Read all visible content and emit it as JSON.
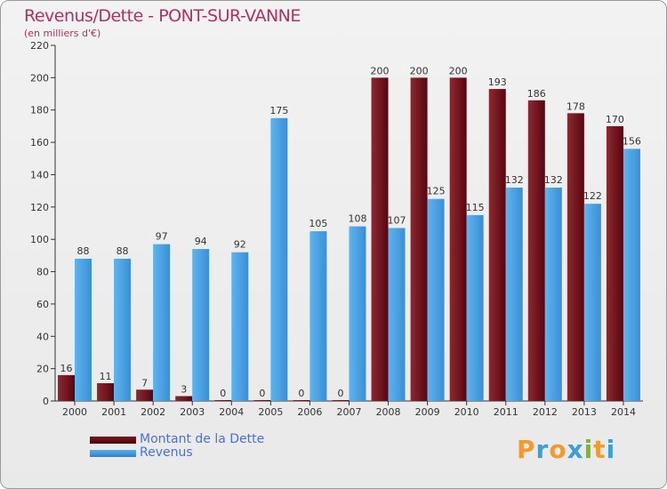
{
  "chart_data": {
    "type": "bar",
    "title": "Revenus/Dette - PONT-SUR-VANNE",
    "subtitle": "(en milliers d'€)",
    "categories": [
      "2000",
      "2001",
      "2002",
      "2003",
      "2004",
      "2005",
      "2006",
      "2007",
      "2008",
      "2009",
      "2010",
      "2011",
      "2012",
      "2013",
      "2014"
    ],
    "series": [
      {
        "name": "Montant de la Dette",
        "values": [
          16,
          11,
          7,
          3,
          0,
          0,
          0,
          0,
          200,
          200,
          200,
          193,
          186,
          178,
          170
        ]
      },
      {
        "name": "Revenus",
        "values": [
          88,
          88,
          97,
          94,
          92,
          175,
          105,
          108,
          107,
          125,
          115,
          132,
          132,
          122,
          156
        ]
      }
    ],
    "yticks": [
      0,
      20,
      40,
      60,
      80,
      100,
      120,
      140,
      160,
      180,
      200,
      220
    ],
    "ylim": [
      0,
      220
    ],
    "xlabel": "",
    "ylabel": "",
    "grid": false,
    "legend_position": "bottom-left",
    "colors": {
      "dette": "#6a0d14",
      "revenus": "#4aa3e6",
      "title": "#b03060",
      "legend": "#4a6fe0"
    }
  },
  "logo": {
    "letters": [
      "P",
      "r",
      "o",
      "x",
      "i",
      "t",
      "i"
    ],
    "colors": [
      "#f29a2e",
      "#3aa0d8",
      "#f29a2e",
      "#3aa0d8",
      "#7ab82a",
      "#f29a2e",
      "#3aa0d8"
    ]
  }
}
